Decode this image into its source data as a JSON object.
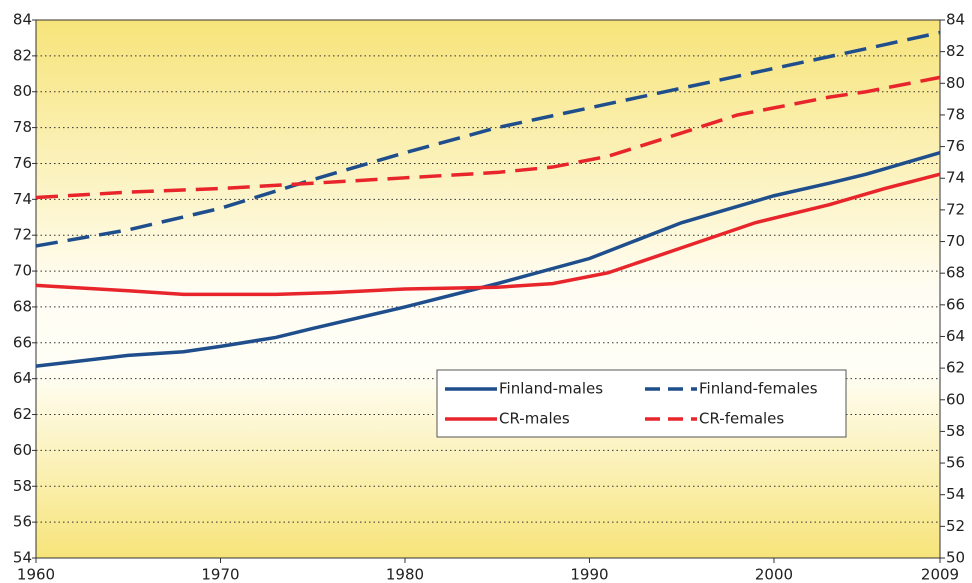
{
  "chart_data": {
    "type": "line",
    "xlim": [
      1960,
      2009
    ],
    "xticks": [
      1960,
      1970,
      1980,
      1990,
      2000,
      2009
    ],
    "ylim": [
      54,
      84
    ],
    "yticks": [
      54,
      56,
      58,
      60,
      62,
      64,
      66,
      68,
      70,
      72,
      74,
      76,
      78,
      80,
      82,
      84
    ],
    "y2lim": [
      50,
      84
    ],
    "y2ticks": [
      50,
      52,
      54,
      56,
      58,
      60,
      62,
      64,
      66,
      68,
      70,
      72,
      74,
      76,
      78,
      80,
      82,
      84
    ],
    "grid": true,
    "series": [
      {
        "name": "Finland-males",
        "color": "#1f4e8c",
        "dashed": false,
        "x": [
          1960,
          1965,
          1968,
          1970,
          1973,
          1975,
          1980,
          1985,
          1990,
          1995,
          2000,
          2003,
          2005,
          2007,
          2009
        ],
        "values": [
          64.7,
          65.3,
          65.5,
          65.8,
          66.3,
          66.8,
          68.0,
          69.3,
          70.7,
          72.7,
          74.2,
          74.9,
          75.4,
          76.0,
          76.6
        ]
      },
      {
        "name": "Finland-females",
        "color": "#1f4e8c",
        "dashed": true,
        "x": [
          1960,
          1965,
          1970,
          1975,
          1980,
          1985,
          1990,
          1995,
          2000,
          2005,
          2009
        ],
        "values": [
          71.4,
          72.3,
          73.5,
          75.1,
          76.6,
          78.0,
          79.1,
          80.2,
          81.3,
          82.4,
          83.3
        ]
      },
      {
        "name": "CR-males",
        "color": "#e8252b",
        "dashed": false,
        "x": [
          1960,
          1965,
          1968,
          1970,
          1973,
          1976,
          1980,
          1985,
          1988,
          1991,
          1995,
          1999,
          2003,
          2006,
          2009
        ],
        "values": [
          69.2,
          68.9,
          68.7,
          68.7,
          68.7,
          68.8,
          69.0,
          69.1,
          69.3,
          69.9,
          71.3,
          72.7,
          73.7,
          74.6,
          75.4
        ]
      },
      {
        "name": "CR-females",
        "color": "#e8252b",
        "dashed": true,
        "x": [
          1960,
          1965,
          1970,
          1975,
          1980,
          1985,
          1988,
          1991,
          1995,
          1998,
          2000,
          2003,
          2005,
          2009
        ],
        "values": [
          74.1,
          74.4,
          74.6,
          74.9,
          75.2,
          75.5,
          75.8,
          76.4,
          77.7,
          78.7,
          79.1,
          79.7,
          80.0,
          80.8
        ]
      }
    ]
  }
}
